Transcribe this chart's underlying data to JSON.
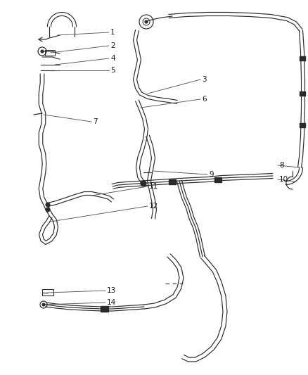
{
  "bg_color": "#ffffff",
  "line_color": "#2a2a2a",
  "label_color": "#1a1a1a",
  "leader_color": "#555555",
  "label_fontsize": 7.5,
  "fig_w": 4.38,
  "fig_h": 5.33,
  "dpi": 100
}
